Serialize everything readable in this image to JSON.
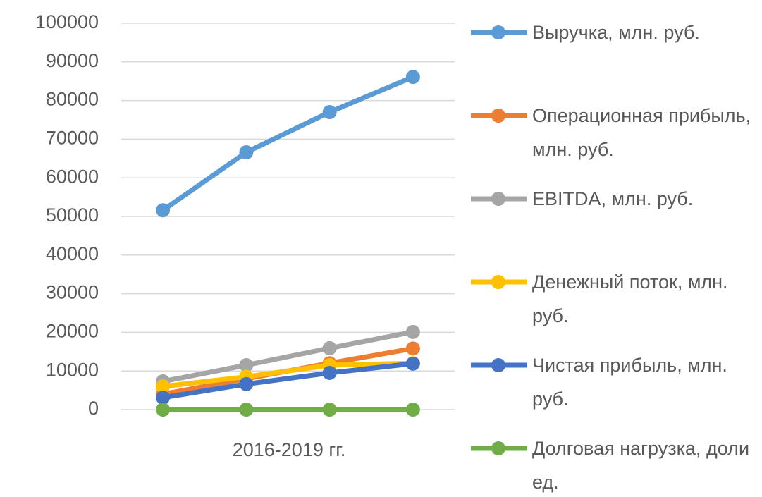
{
  "chart_data": {
    "type": "line",
    "x_label": "2016-2019 гг.",
    "categories": [
      null,
      null,
      null,
      null
    ],
    "series": [
      {
        "name": "Выручка, млн. руб.",
        "color": "#5b9bd5",
        "values": [
          51600,
          66600,
          77000,
          86100
        ]
      },
      {
        "name": "Операционная прибыль, млн. руб.",
        "color": "#ed7d31",
        "values": [
          4000,
          8000,
          12000,
          15800
        ]
      },
      {
        "name": "EBITDA, млн. руб.",
        "color": "#a5a5a5",
        "values": [
          7300,
          11500,
          15900,
          20100
        ]
      },
      {
        "name": "Денежный поток, млн. руб.",
        "color": "#ffc000",
        "values": [
          6000,
          8500,
          11500,
          12000
        ]
      },
      {
        "name": "Чистая прибыль, млн. руб.",
        "color": "#4472c4",
        "values": [
          3100,
          6600,
          9500,
          11900
        ]
      },
      {
        "name": "Долговая нагрузка, доли ед.",
        "color": "#70ad47",
        "values": [
          0,
          0,
          0,
          0
        ]
      }
    ],
    "ylim": [
      0,
      100000
    ],
    "yticks": [
      0,
      10000,
      20000,
      30000,
      40000,
      50000,
      60000,
      70000,
      80000,
      90000,
      100000
    ],
    "grid": true,
    "legend": "right"
  }
}
